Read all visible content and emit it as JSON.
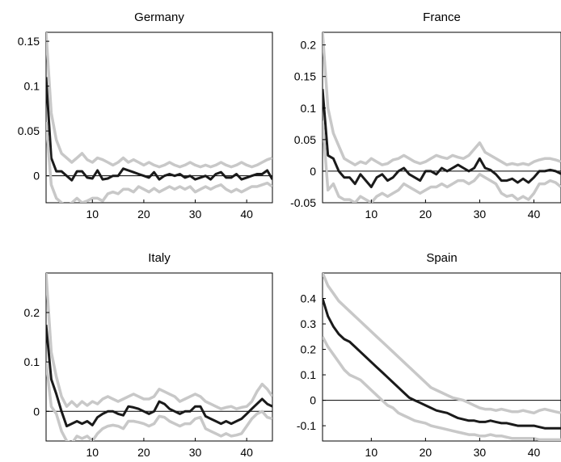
{
  "chart_data": [
    {
      "type": "line",
      "title": "Germany",
      "xlim": [
        1,
        45
      ],
      "ylim": [
        -0.03,
        0.16
      ],
      "xticks": [
        "10",
        "20",
        "30",
        "40"
      ],
      "yticks": [
        "0",
        "0.05",
        "0.1",
        "0.15"
      ],
      "zero_line": true,
      "x_start": 1,
      "series": [
        {
          "role": "upper band",
          "color": "#c8c8c8",
          "values": [
            0.16,
            0.07,
            0.04,
            0.025,
            0.02,
            0.015,
            0.02,
            0.025,
            0.018,
            0.015,
            0.02,
            0.018,
            0.015,
            0.012,
            0.015,
            0.02,
            0.015,
            0.018,
            0.015,
            0.012,
            0.015,
            0.012,
            0.01,
            0.012,
            0.015,
            0.012,
            0.01,
            0.012,
            0.015,
            0.012,
            0.01,
            0.012,
            0.01,
            0.012,
            0.015,
            0.012,
            0.01,
            0.012,
            0.015,
            0.012,
            0.01,
            0.012,
            0.015,
            0.018,
            0.02
          ]
        },
        {
          "role": "estimate",
          "color": "#1a1a1a",
          "values": [
            0.11,
            0.02,
            0.005,
            0.005,
            0.0,
            -0.005,
            0.005,
            0.005,
            -0.002,
            -0.003,
            0.006,
            -0.004,
            -0.003,
            0.0,
            0.0,
            0.008,
            0.006,
            0.004,
            0.002,
            0.0,
            -0.002,
            0.004,
            -0.004,
            0.0,
            0.002,
            0.0,
            0.002,
            -0.002,
            0.0,
            -0.004,
            -0.002,
            0.0,
            -0.004,
            0.002,
            0.004,
            -0.002,
            -0.002,
            0.002,
            -0.004,
            -0.002,
            0.0,
            0.002,
            0.002,
            0.006,
            -0.004
          ]
        },
        {
          "role": "lower band",
          "color": "#c8c8c8",
          "values": [
            0.06,
            -0.01,
            -0.025,
            -0.03,
            -0.035,
            -0.03,
            -0.025,
            -0.03,
            -0.028,
            -0.025,
            -0.025,
            -0.028,
            -0.02,
            -0.018,
            -0.02,
            -0.015,
            -0.015,
            -0.018,
            -0.012,
            -0.015,
            -0.018,
            -0.014,
            -0.018,
            -0.015,
            -0.012,
            -0.015,
            -0.012,
            -0.015,
            -0.012,
            -0.018,
            -0.015,
            -0.012,
            -0.015,
            -0.012,
            -0.01,
            -0.015,
            -0.018,
            -0.015,
            -0.018,
            -0.015,
            -0.012,
            -0.012,
            -0.01,
            -0.008,
            -0.012
          ]
        }
      ]
    },
    {
      "type": "line",
      "title": "France",
      "xlim": [
        1,
        45
      ],
      "ylim": [
        -0.05,
        0.22
      ],
      "xticks": [
        "10",
        "20",
        "30",
        "40"
      ],
      "yticks": [
        "-0.05",
        "0",
        "0.05",
        "0.1",
        "0.15",
        "0.2"
      ],
      "zero_line": true,
      "x_start": 1,
      "series": [
        {
          "role": "upper band",
          "color": "#c8c8c8",
          "values": [
            0.22,
            0.1,
            0.06,
            0.04,
            0.02,
            0.015,
            0.01,
            0.015,
            0.012,
            0.02,
            0.015,
            0.01,
            0.012,
            0.018,
            0.02,
            0.025,
            0.02,
            0.015,
            0.012,
            0.015,
            0.02,
            0.025,
            0.022,
            0.02,
            0.025,
            0.022,
            0.02,
            0.025,
            0.035,
            0.045,
            0.03,
            0.025,
            0.02,
            0.015,
            0.01,
            0.012,
            0.01,
            0.012,
            0.01,
            0.015,
            0.018,
            0.02,
            0.02,
            0.018,
            0.015
          ]
        },
        {
          "role": "estimate",
          "color": "#1a1a1a",
          "values": [
            0.13,
            0.025,
            0.02,
            0.0,
            -0.01,
            -0.01,
            -0.02,
            -0.005,
            -0.015,
            -0.025,
            -0.01,
            -0.005,
            -0.015,
            -0.01,
            0.0,
            0.005,
            -0.005,
            -0.01,
            -0.015,
            0.0,
            0.0,
            -0.005,
            0.005,
            0.0,
            0.005,
            0.01,
            0.005,
            0.0,
            0.005,
            0.02,
            0.005,
            0.002,
            -0.005,
            -0.015,
            -0.015,
            -0.012,
            -0.018,
            -0.012,
            -0.018,
            -0.01,
            0.0,
            0.0,
            0.002,
            0.0,
            -0.004
          ]
        },
        {
          "role": "lower band",
          "color": "#c8c8c8",
          "values": [
            0.08,
            -0.03,
            -0.02,
            -0.04,
            -0.045,
            -0.045,
            -0.05,
            -0.04,
            -0.045,
            -0.05,
            -0.04,
            -0.035,
            -0.04,
            -0.035,
            -0.03,
            -0.02,
            -0.025,
            -0.03,
            -0.035,
            -0.03,
            -0.025,
            -0.025,
            -0.02,
            -0.025,
            -0.02,
            -0.015,
            -0.015,
            -0.02,
            -0.015,
            -0.005,
            -0.01,
            -0.015,
            -0.02,
            -0.035,
            -0.04,
            -0.038,
            -0.045,
            -0.04,
            -0.045,
            -0.035,
            -0.02,
            -0.02,
            -0.015,
            -0.018,
            -0.025
          ]
        }
      ]
    },
    {
      "type": "line",
      "title": "Italy",
      "xlim": [
        1,
        45
      ],
      "ylim": [
        -0.06,
        0.28
      ],
      "xticks": [
        "10",
        "20",
        "30",
        "40"
      ],
      "yticks": [
        "0",
        "0.1",
        "0.2"
      ],
      "zero_line": true,
      "x_start": 1,
      "series": [
        {
          "role": "upper band",
          "color": "#c8c8c8",
          "values": [
            0.28,
            0.12,
            0.07,
            0.03,
            0.01,
            0.02,
            0.01,
            0.02,
            0.012,
            0.02,
            0.015,
            0.025,
            0.03,
            0.025,
            0.02,
            0.025,
            0.03,
            0.035,
            0.03,
            0.025,
            0.025,
            0.03,
            0.045,
            0.04,
            0.035,
            0.03,
            0.02,
            0.025,
            0.03,
            0.035,
            0.03,
            0.02,
            0.015,
            0.01,
            0.005,
            0.008,
            0.01,
            0.005,
            0.008,
            0.01,
            0.02,
            0.04,
            0.055,
            0.045,
            0.03
          ]
        },
        {
          "role": "estimate",
          "color": "#1a1a1a",
          "values": [
            0.175,
            0.065,
            0.035,
            0.0,
            -0.03,
            -0.025,
            -0.02,
            -0.025,
            -0.02,
            -0.028,
            -0.012,
            -0.005,
            0.0,
            0.0,
            -0.005,
            -0.008,
            0.01,
            0.008,
            0.005,
            0.0,
            -0.005,
            0.0,
            0.02,
            0.015,
            0.005,
            0.0,
            -0.005,
            0.0,
            0.0,
            0.01,
            0.01,
            -0.01,
            -0.015,
            -0.02,
            -0.025,
            -0.02,
            -0.025,
            -0.02,
            -0.015,
            -0.005,
            0.005,
            0.015,
            0.025,
            0.015,
            0.01
          ]
        },
        {
          "role": "lower band",
          "color": "#c8c8c8",
          "values": [
            0.1,
            0.01,
            -0.005,
            -0.04,
            -0.06,
            -0.065,
            -0.05,
            -0.055,
            -0.05,
            -0.06,
            -0.045,
            -0.035,
            -0.03,
            -0.028,
            -0.03,
            -0.035,
            -0.02,
            -0.02,
            -0.022,
            -0.025,
            -0.03,
            -0.025,
            -0.01,
            -0.012,
            -0.02,
            -0.025,
            -0.03,
            -0.025,
            -0.025,
            -0.015,
            -0.012,
            -0.035,
            -0.04,
            -0.045,
            -0.05,
            -0.045,
            -0.05,
            -0.048,
            -0.045,
            -0.03,
            -0.015,
            -0.005,
            0.0,
            -0.012,
            -0.015
          ]
        }
      ]
    },
    {
      "type": "line",
      "title": "Spain",
      "xlim": [
        1,
        45
      ],
      "ylim": [
        -0.16,
        0.5
      ],
      "xticks": [
        "10",
        "20",
        "30",
        "40"
      ],
      "yticks": [
        "-0.1",
        "0",
        "0.1",
        "0.2",
        "0.3",
        "0.4"
      ],
      "zero_line": true,
      "x_start": 1,
      "series": [
        {
          "role": "upper band",
          "color": "#c8c8c8",
          "values": [
            0.5,
            0.45,
            0.42,
            0.39,
            0.37,
            0.35,
            0.33,
            0.31,
            0.29,
            0.27,
            0.25,
            0.23,
            0.21,
            0.19,
            0.17,
            0.15,
            0.13,
            0.11,
            0.09,
            0.07,
            0.05,
            0.04,
            0.03,
            0.02,
            0.01,
            0.005,
            0.0,
            -0.01,
            -0.02,
            -0.03,
            -0.035,
            -0.035,
            -0.04,
            -0.035,
            -0.04,
            -0.045,
            -0.045,
            -0.04,
            -0.045,
            -0.05,
            -0.04,
            -0.035,
            -0.04,
            -0.045,
            -0.05
          ]
        },
        {
          "role": "estimate",
          "color": "#1a1a1a",
          "values": [
            0.4,
            0.33,
            0.29,
            0.26,
            0.24,
            0.23,
            0.21,
            0.19,
            0.17,
            0.15,
            0.13,
            0.11,
            0.09,
            0.07,
            0.05,
            0.03,
            0.01,
            0.0,
            -0.01,
            -0.02,
            -0.03,
            -0.04,
            -0.045,
            -0.05,
            -0.06,
            -0.07,
            -0.075,
            -0.08,
            -0.08,
            -0.085,
            -0.085,
            -0.08,
            -0.085,
            -0.09,
            -0.09,
            -0.095,
            -0.1,
            -0.1,
            -0.1,
            -0.1,
            -0.105,
            -0.11,
            -0.11,
            -0.11,
            -0.11
          ]
        },
        {
          "role": "lower band",
          "color": "#c8c8c8",
          "values": [
            0.25,
            0.21,
            0.18,
            0.15,
            0.12,
            0.1,
            0.09,
            0.08,
            0.06,
            0.04,
            0.02,
            0.0,
            -0.02,
            -0.03,
            -0.05,
            -0.06,
            -0.07,
            -0.08,
            -0.085,
            -0.09,
            -0.1,
            -0.105,
            -0.11,
            -0.115,
            -0.12,
            -0.125,
            -0.13,
            -0.135,
            -0.135,
            -0.14,
            -0.14,
            -0.135,
            -0.14,
            -0.14,
            -0.145,
            -0.15,
            -0.15,
            -0.15,
            -0.15,
            -0.15,
            -0.155,
            -0.155,
            -0.155,
            -0.155,
            -0.155
          ]
        }
      ]
    }
  ]
}
